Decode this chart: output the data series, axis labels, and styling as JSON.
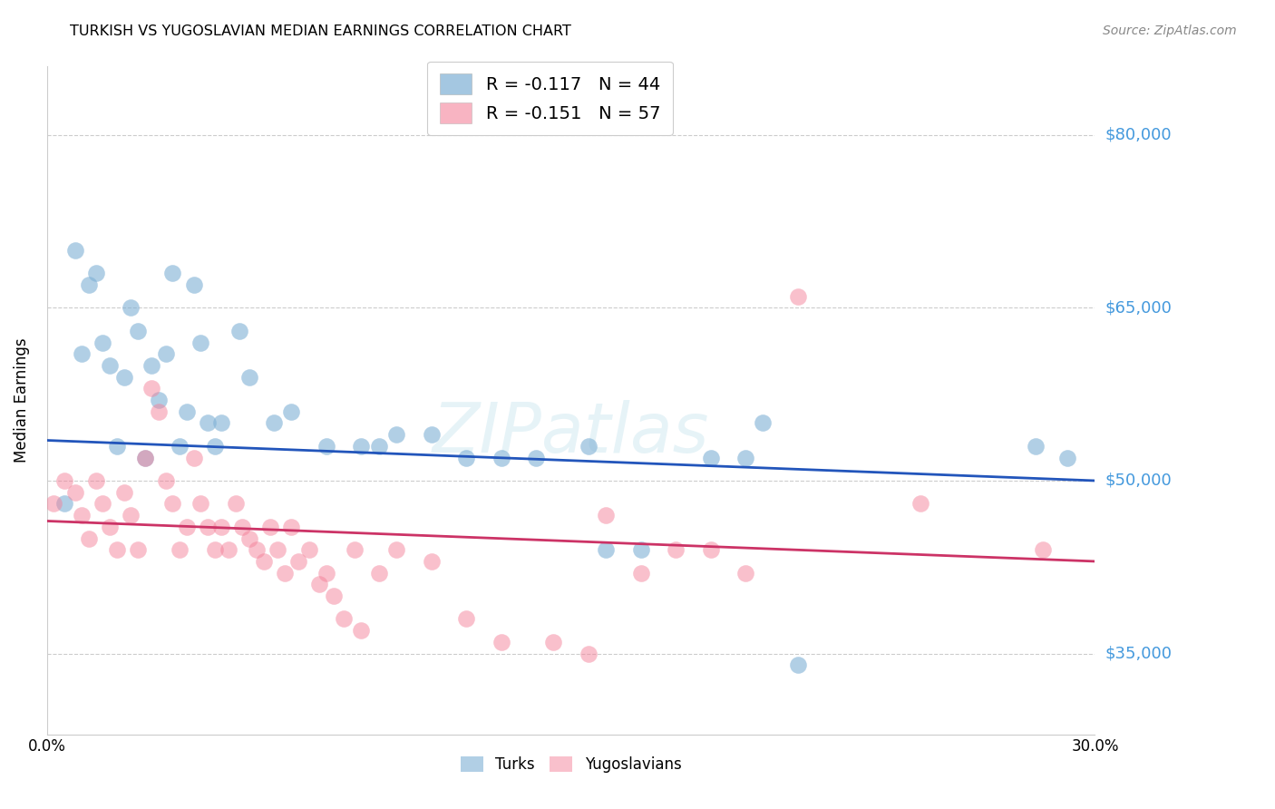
{
  "title": "TURKISH VS YUGOSLAVIAN MEDIAN EARNINGS CORRELATION CHART",
  "source": "Source: ZipAtlas.com",
  "ylabel": "Median Earnings",
  "xlim": [
    0.0,
    0.3
  ],
  "ylim": [
    28000,
    86000
  ],
  "yticks": [
    35000,
    50000,
    65000,
    80000
  ],
  "ytick_labels": [
    "$35,000",
    "$50,000",
    "$65,000",
    "$80,000"
  ],
  "xticks": [
    0.0,
    0.05,
    0.1,
    0.15,
    0.2,
    0.25,
    0.3
  ],
  "xtick_labels": [
    "0.0%",
    "",
    "",
    "",
    "",
    "",
    "30.0%"
  ],
  "watermark": "ZIPatlas",
  "blue_color": "#7EB0D5",
  "pink_color": "#F4829A",
  "blue_line_color": "#2255BB",
  "pink_line_color": "#CC3366",
  "blue_R": -0.117,
  "blue_N": 44,
  "pink_R": -0.151,
  "pink_N": 57,
  "blue_line_y0": 53500,
  "blue_line_y1": 50000,
  "pink_line_y0": 46500,
  "pink_line_y1": 43000,
  "turks_x": [
    0.005,
    0.008,
    0.01,
    0.012,
    0.014,
    0.016,
    0.018,
    0.02,
    0.022,
    0.024,
    0.026,
    0.028,
    0.03,
    0.032,
    0.034,
    0.036,
    0.038,
    0.04,
    0.042,
    0.044,
    0.046,
    0.048,
    0.05,
    0.055,
    0.058,
    0.065,
    0.07,
    0.08,
    0.09,
    0.095,
    0.1,
    0.11,
    0.12,
    0.13,
    0.14,
    0.155,
    0.16,
    0.17,
    0.19,
    0.2,
    0.205,
    0.215,
    0.283,
    0.292
  ],
  "turks_y": [
    48000,
    70000,
    61000,
    67000,
    68000,
    62000,
    60000,
    53000,
    59000,
    65000,
    63000,
    52000,
    60000,
    57000,
    61000,
    68000,
    53000,
    56000,
    67000,
    62000,
    55000,
    53000,
    55000,
    63000,
    59000,
    55000,
    56000,
    53000,
    53000,
    53000,
    54000,
    54000,
    52000,
    52000,
    52000,
    53000,
    44000,
    44000,
    52000,
    52000,
    55000,
    34000,
    53000,
    52000
  ],
  "yugoslav_x": [
    0.002,
    0.005,
    0.008,
    0.01,
    0.012,
    0.014,
    0.016,
    0.018,
    0.02,
    0.022,
    0.024,
    0.026,
    0.028,
    0.03,
    0.032,
    0.034,
    0.036,
    0.038,
    0.04,
    0.042,
    0.044,
    0.046,
    0.048,
    0.05,
    0.052,
    0.054,
    0.056,
    0.058,
    0.06,
    0.062,
    0.064,
    0.066,
    0.068,
    0.07,
    0.072,
    0.075,
    0.078,
    0.08,
    0.082,
    0.085,
    0.088,
    0.09,
    0.095,
    0.1,
    0.11,
    0.12,
    0.13,
    0.145,
    0.155,
    0.16,
    0.17,
    0.18,
    0.19,
    0.2,
    0.215,
    0.25,
    0.285
  ],
  "yugoslav_y": [
    48000,
    50000,
    49000,
    47000,
    45000,
    50000,
    48000,
    46000,
    44000,
    49000,
    47000,
    44000,
    52000,
    58000,
    56000,
    50000,
    48000,
    44000,
    46000,
    52000,
    48000,
    46000,
    44000,
    46000,
    44000,
    48000,
    46000,
    45000,
    44000,
    43000,
    46000,
    44000,
    42000,
    46000,
    43000,
    44000,
    41000,
    42000,
    40000,
    38000,
    44000,
    37000,
    42000,
    44000,
    43000,
    38000,
    36000,
    36000,
    35000,
    47000,
    42000,
    44000,
    44000,
    42000,
    66000,
    48000,
    44000
  ]
}
